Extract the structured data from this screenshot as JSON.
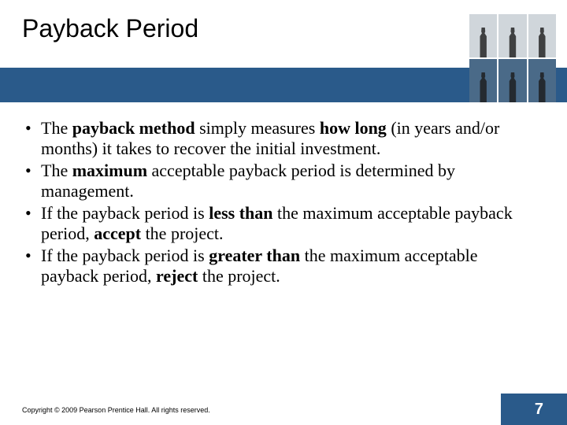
{
  "title": "Payback Period",
  "bullets": [
    {
      "segments": [
        {
          "t": "The ",
          "b": false
        },
        {
          "t": "payback method",
          "b": true
        },
        {
          "t": " simply measures ",
          "b": false
        },
        {
          "t": "how long",
          "b": true
        },
        {
          "t": " (in years and/or months) it takes to recover the initial investment.",
          "b": false
        }
      ]
    },
    {
      "segments": [
        {
          "t": "The ",
          "b": false
        },
        {
          "t": "maximum",
          "b": true
        },
        {
          "t": " acceptable payback period is determined by management.",
          "b": false
        }
      ]
    },
    {
      "segments": [
        {
          "t": "If the payback period is ",
          "b": false
        },
        {
          "t": "less than",
          "b": true
        },
        {
          "t": " the maximum acceptable payback period, ",
          "b": false
        },
        {
          "t": "accept",
          "b": true
        },
        {
          "t": " the project.",
          "b": false
        }
      ]
    },
    {
      "segments": [
        {
          "t": "If the payback period is ",
          "b": false
        },
        {
          "t": "greater than",
          "b": true
        },
        {
          "t": " the maximum acceptable payback period, ",
          "b": false
        },
        {
          "t": "reject",
          "b": true
        },
        {
          "t": " the project.",
          "b": false
        }
      ]
    }
  ],
  "copyright": "Copyright © 2009 Pearson Prentice Hall. All rights reserved.",
  "page_number": "7",
  "colors": {
    "band": "#2a5a8a",
    "background": "#ffffff",
    "text": "#000000"
  },
  "typography": {
    "title_family": "Arial",
    "title_size_pt": 24,
    "body_family": "Times New Roman",
    "body_size_pt": 17,
    "copyright_size_pt": 7
  }
}
